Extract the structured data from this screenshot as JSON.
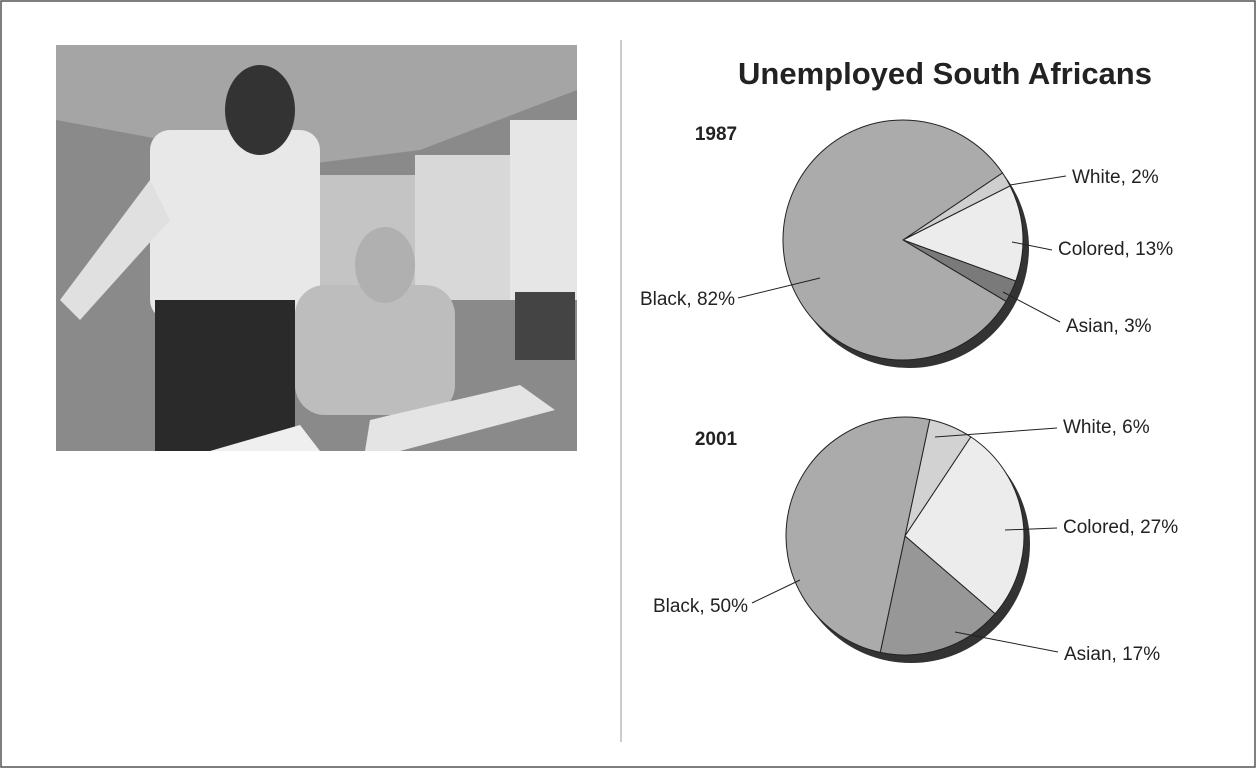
{
  "title": "Unemployed South Africans",
  "chart_data": [
    {
      "type": "pie",
      "title": "1987",
      "categories": [
        "White, 2%",
        "Colored, 13%",
        "Asian, 3%",
        "Black, 82%"
      ],
      "values": [
        2,
        13,
        3,
        82
      ],
      "colors": [
        "#cfcfcf",
        "#ececec",
        "#7a7a7a",
        "#ababab"
      ]
    },
    {
      "type": "pie",
      "title": "2001",
      "categories": [
        "White, 6%",
        "Colored, 27%",
        "Asian, 17%",
        "Black, 50%"
      ],
      "values": [
        6,
        27,
        17,
        50
      ],
      "colors": [
        "#d2d2d2",
        "#ececec",
        "#979797",
        "#ababab"
      ]
    }
  ]
}
